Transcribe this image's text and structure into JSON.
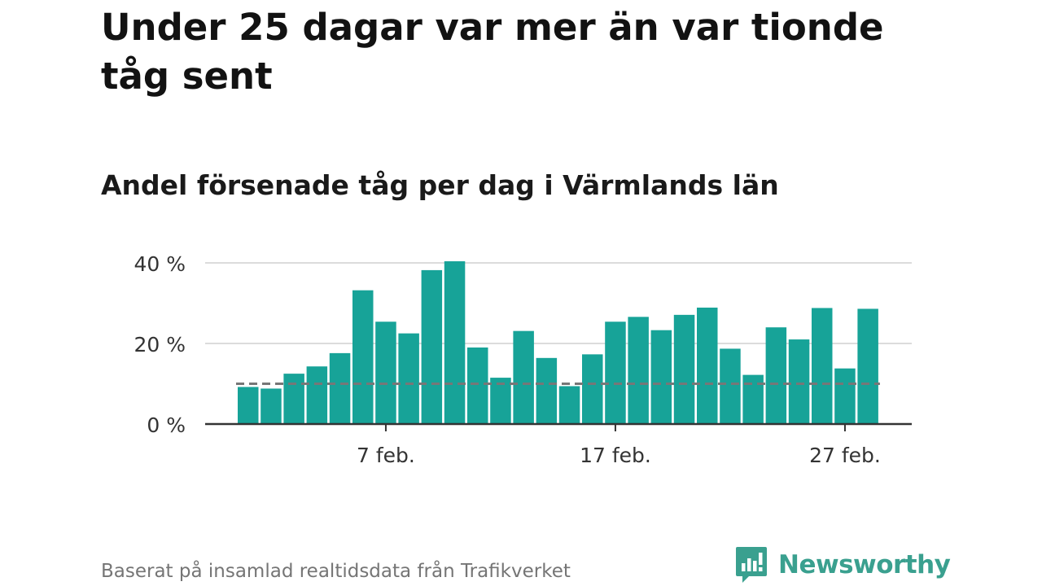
{
  "title": "Under 25 dagar var mer än var tionde tåg sent",
  "subtitle": "Andel försenade tåg per dag i Värmlands län",
  "source": "Baserat på insamlad realtidsdata från Trafikverket",
  "logo_text": "Newsworthy",
  "colors": {
    "bar": "#17a398",
    "reference": "#777777",
    "grid": "#dcdcdc",
    "axis": "#333333",
    "brand": "#3aa08f"
  },
  "chart_data": {
    "type": "bar",
    "x_axis": "date",
    "categories": [
      "1 feb.",
      "2 feb.",
      "3 feb.",
      "4 feb.",
      "5 feb.",
      "6 feb.",
      "7 feb.",
      "8 feb.",
      "9 feb.",
      "10 feb.",
      "11 feb.",
      "12 feb.",
      "13 feb.",
      "14 feb.",
      "15 feb.",
      "16 feb.",
      "17 feb.",
      "18 feb.",
      "19 feb.",
      "20 feb.",
      "21 feb.",
      "22 feb.",
      "23 feb.",
      "24 feb.",
      "25 feb.",
      "26 feb.",
      "27 feb.",
      "28 feb."
    ],
    "values": [
      9.2,
      8.8,
      12.5,
      14.3,
      17.6,
      33.2,
      25.4,
      22.5,
      38.2,
      40.4,
      19.0,
      11.5,
      23.1,
      16.4,
      9.4,
      17.3,
      25.4,
      26.6,
      23.3,
      27.1,
      28.9,
      18.7,
      12.2,
      24.0,
      21.0,
      28.8,
      13.8,
      28.6
    ],
    "reference_line": 10,
    "ylim": [
      0,
      40
    ],
    "yticks": [
      0,
      20,
      40
    ],
    "ytick_labels": [
      "0 %",
      "20 %",
      "40 %"
    ],
    "xtick_labels": [
      {
        "category": "7 feb.",
        "label": "7 feb."
      },
      {
        "category": "17 feb.",
        "label": "17 feb."
      },
      {
        "category": "27 feb.",
        "label": "27 feb."
      }
    ],
    "grid": true,
    "legend": "none"
  }
}
